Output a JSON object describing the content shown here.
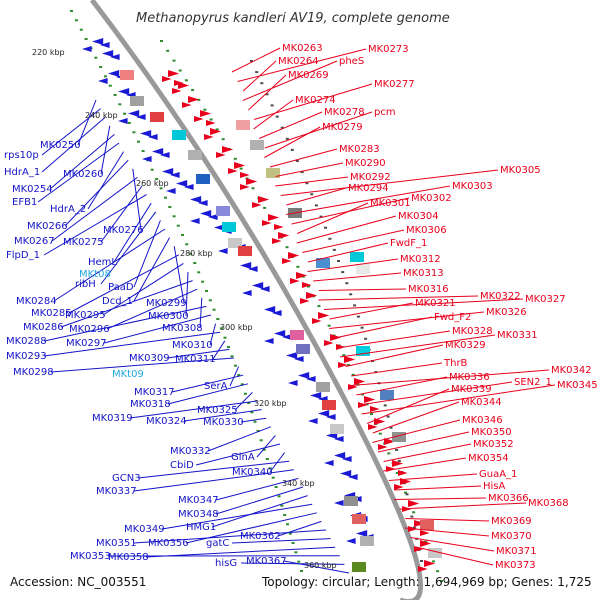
{
  "title": "Methanopyrus kandleri AV19, complete genome",
  "footer": {
    "accession": "Accession: NC_003551",
    "summary": "Topology: circular; Length: 1,694,969 bp; Genes: 1,725"
  },
  "colors": {
    "backbone": "#999999",
    "right_label": "#e8001c",
    "left_label": "#1414c8",
    "rna_label": "#22a9e0",
    "tick": "#2e8b2e",
    "kbp_text": "#222222"
  },
  "kbp_marks": [
    "220 kbp",
    "240 kbp",
    "260 kbp",
    "280 kbp",
    "300 kbp",
    "320 kbp",
    "340 kbp",
    "360 kbp"
  ],
  "right_labels": [
    "MK0263",
    "MK0273",
    "MK0264",
    "pheS",
    "MK0269",
    "MK0277",
    "MK0274",
    "MK0278",
    "pcm",
    "MK0279",
    "MK0283",
    "MK0290",
    "MK0292",
    "MK0305",
    "MK0294",
    "MK0303",
    "MK0302",
    "MK0301",
    "MK0304",
    "MK0306",
    "FwdF_1",
    "MK0312",
    "MK0313",
    "MK0316",
    "MK0322",
    "MK0327",
    "MK0321",
    "MK0326",
    "Fwd_F2",
    "MK0328",
    "MK0331",
    "MK0329",
    "ThrB",
    "MK0342",
    "MK0336",
    "SEN2_1",
    "MK0345",
    "MK0339",
    "MK0344",
    "MK0346",
    "MK0350",
    "MK0352",
    "MK0354",
    "GuaA_1",
    "HisA",
    "MK0366",
    "MK0368",
    "MK0369",
    "MK0370",
    "MK0371",
    "MK0373"
  ],
  "left_labels": [
    "MK0250",
    "rps10p",
    "HdrA_1",
    "MK0260",
    "MK0254",
    "EFB1",
    "HdrA_2",
    "MK0266",
    "MK0276",
    "MK0267",
    "MK0275",
    "FlpD_1",
    "HemL",
    "ribH",
    "PaaD",
    "MK0284",
    "Dcd_1",
    "MK0299",
    "MK0285",
    "MK0295",
    "MK0300",
    "MK0286",
    "MK0296",
    "MK0308",
    "MK0288",
    "MK0297",
    "MK0310",
    "MK0293",
    "MK0311",
    "MK0309",
    "MK0298",
    "SerA",
    "MK0317",
    "MK0318",
    "MK0325",
    "MK0319",
    "MK0324",
    "MK0330",
    "MK0332",
    "GlnA",
    "CbiD",
    "MK0340",
    "GCN3",
    "MK0337",
    "MK0347",
    "MK0348",
    "HMG1",
    "MK0349",
    "MK0356",
    "MK0362",
    "MK0351",
    "gatC",
    "MK0358",
    "MK0353",
    "hisG",
    "MK0367"
  ],
  "rna_labels": [
    "MKt08",
    "MKt09"
  ]
}
